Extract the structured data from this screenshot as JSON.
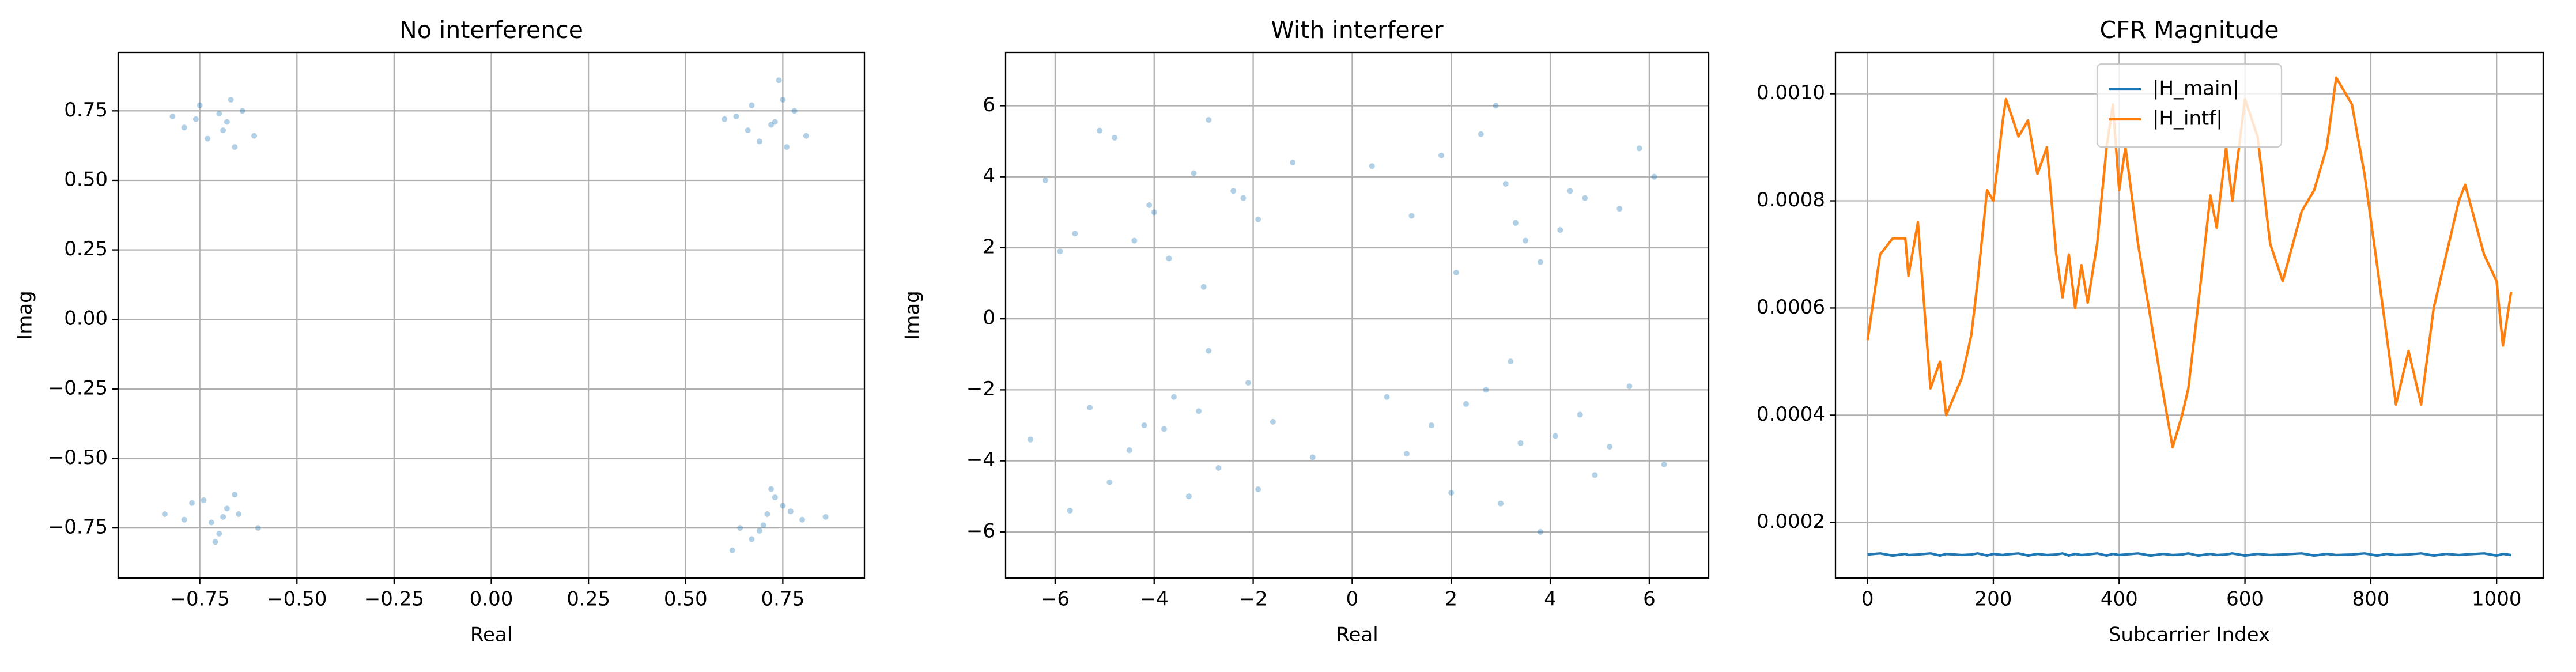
{
  "chart_data": [
    {
      "type": "scatter",
      "title": "No interference",
      "xlabel": "Real",
      "ylabel": "Imag",
      "xlim": [
        -0.96,
        0.96
      ],
      "ylim": [
        -0.93,
        0.96
      ],
      "grid": true,
      "xticks": [
        {
          "value": -0.75,
          "label": "−0.75"
        },
        {
          "value": -0.5,
          "label": "−0.50"
        },
        {
          "value": -0.25,
          "label": "−0.25"
        },
        {
          "value": 0,
          "label": "0.00"
        },
        {
          "value": 0.25,
          "label": "0.25"
        },
        {
          "value": 0.5,
          "label": "0.50"
        },
        {
          "value": 0.75,
          "label": "0.75"
        }
      ],
      "yticks": [
        {
          "value": -0.75,
          "label": "−0.75"
        },
        {
          "value": -0.5,
          "label": "−0.50"
        },
        {
          "value": -0.25,
          "label": "−0.25"
        },
        {
          "value": 0,
          "label": "0.00"
        },
        {
          "value": 0.25,
          "label": "0.25"
        },
        {
          "value": 0.5,
          "label": "0.50"
        },
        {
          "value": 0.75,
          "label": "0.75"
        }
      ],
      "series": [
        {
          "color": "#1f77b4",
          "x": [
            -0.69,
            -0.76,
            -0.64,
            -0.73,
            -0.67,
            -0.79,
            -0.7,
            -0.61,
            -0.75,
            -0.66,
            -0.82,
            -0.68,
            0.73,
            0.66,
            0.78,
            0.69,
            0.75,
            0.63,
            0.72,
            0.81,
            0.67,
            0.76,
            0.6,
            0.74,
            -0.72,
            -0.65,
            -0.77,
            -0.7,
            -0.66,
            -0.79,
            -0.68,
            -0.6,
            -0.74,
            -0.71,
            -0.84,
            -0.69,
            0.7,
            0.77,
            0.64,
            0.73,
            0.67,
            0.8,
            0.71,
            0.62,
            0.75,
            0.69,
            0.86,
            0.72
          ],
          "y": [
            0.68,
            0.72,
            0.75,
            0.65,
            0.79,
            0.69,
            0.74,
            0.66,
            0.77,
            0.62,
            0.73,
            0.71,
            0.71,
            0.68,
            0.75,
            0.64,
            0.79,
            0.73,
            0.7,
            0.66,
            0.77,
            0.62,
            0.72,
            0.86,
            -0.73,
            -0.7,
            -0.66,
            -0.77,
            -0.63,
            -0.72,
            -0.68,
            -0.75,
            -0.65,
            -0.8,
            -0.7,
            -0.71,
            -0.74,
            -0.69,
            -0.75,
            -0.64,
            -0.79,
            -0.72,
            -0.7,
            -0.83,
            -0.67,
            -0.76,
            -0.71,
            -0.61
          ]
        }
      ]
    },
    {
      "type": "scatter",
      "title": "With interferer",
      "xlabel": "Real",
      "ylabel": "Imag",
      "xlim": [
        -7.0,
        7.2
      ],
      "ylim": [
        -7.3,
        7.5
      ],
      "grid": true,
      "xticks": [
        {
          "value": -6,
          "label": "−6"
        },
        {
          "value": -4,
          "label": "−4"
        },
        {
          "value": -2,
          "label": "−2"
        },
        0,
        2,
        4,
        6
      ],
      "yticks": [
        {
          "value": -6,
          "label": "−6"
        },
        {
          "value": -4,
          "label": "−4"
        },
        {
          "value": -2,
          "label": "−2"
        },
        0,
        2,
        4,
        6
      ],
      "series": [
        {
          "color": "#1f77b4",
          "x": [
            -4.1,
            -3.2,
            -5.6,
            -2.4,
            -4.8,
            -1.9,
            -3.7,
            -6.2,
            -2.9,
            -4.4,
            -1.2,
            -5.1,
            -3.0,
            -4.0,
            -2.2,
            -5.9,
            3.1,
            4.2,
            1.8,
            5.4,
            2.6,
            3.8,
            6.1,
            1.2,
            4.7,
            2.9,
            3.5,
            5.8,
            2.1,
            4.4,
            0.4,
            3.3,
            -3.8,
            -2.7,
            -5.3,
            -4.5,
            -1.6,
            -3.3,
            -6.5,
            -2.1,
            -4.9,
            -3.6,
            -0.8,
            -5.7,
            -2.9,
            -4.2,
            -1.9,
            -3.1,
            3.4,
            2.3,
            4.9,
            1.6,
            5.6,
            3.0,
            4.1,
            2.7,
            6.3,
            1.1,
            3.8,
            4.6,
            2.0,
            5.2,
            0.7,
            3.2
          ],
          "y": [
            3.2,
            4.1,
            2.4,
            3.6,
            5.1,
            2.8,
            1.7,
            3.9,
            5.6,
            2.2,
            4.4,
            5.3,
            0.9,
            3.0,
            3.4,
            1.9,
            3.8,
            2.5,
            4.6,
            3.1,
            5.2,
            1.6,
            4.0,
            2.9,
            3.4,
            6.0,
            2.2,
            4.8,
            1.3,
            3.6,
            4.3,
            2.7,
            -3.1,
            -4.2,
            -2.5,
            -3.7,
            -2.9,
            -5.0,
            -3.4,
            -1.8,
            -4.6,
            -2.2,
            -3.9,
            -5.4,
            -0.9,
            -3.0,
            -4.8,
            -2.6,
            -3.5,
            -2.4,
            -4.4,
            -3.0,
            -1.9,
            -5.2,
            -3.3,
            -2.0,
            -4.1,
            -3.8,
            -6.0,
            -2.7,
            -4.9,
            -3.6,
            -2.2,
            -1.2
          ]
        }
      ]
    },
    {
      "type": "line",
      "title": "CFR Magnitude",
      "xlabel": "Subcarrier Index",
      "xlim": [
        -51,
        1074
      ],
      "ylim": [
        9.6e-05,
        0.001077
      ],
      "grid": true,
      "legend": "upper center",
      "xticks": [
        0,
        200,
        400,
        600,
        800,
        1000
      ],
      "yticks": [
        {
          "value": 0.0002,
          "label": "0.0002"
        },
        {
          "value": 0.0004,
          "label": "0.0004"
        },
        {
          "value": 0.0006,
          "label": "0.0006"
        },
        {
          "value": 0.0008,
          "label": "0.0008"
        },
        {
          "value": 0.001,
          "label": "0.0010"
        }
      ],
      "x": [
        0,
        20,
        40,
        60,
        65,
        80,
        100,
        115,
        125,
        150,
        165,
        175,
        190,
        200,
        215,
        220,
        240,
        255,
        270,
        285,
        300,
        310,
        320,
        330,
        340,
        350,
        365,
        380,
        390,
        400,
        410,
        430,
        450,
        470,
        485,
        500,
        510,
        525,
        545,
        555,
        570,
        580,
        600,
        620,
        640,
        660,
        690,
        710,
        730,
        745,
        770,
        790,
        810,
        825,
        840,
        860,
        880,
        900,
        920,
        940,
        950,
        980,
        1000,
        1010,
        1023
      ],
      "series": [
        {
          "name": "|H_main|",
          "color": "#1f77b4",
          "values": [
            0.00014,
            0.000142,
            0.000138,
            0.000141,
            0.000139,
            0.00014,
            0.000142,
            0.000138,
            0.000141,
            0.000139,
            0.00014,
            0.000142,
            0.000138,
            0.000141,
            0.000139,
            0.00014,
            0.000142,
            0.000138,
            0.000141,
            0.000139,
            0.00014,
            0.000142,
            0.000138,
            0.000141,
            0.000139,
            0.00014,
            0.000142,
            0.000138,
            0.000141,
            0.000139,
            0.00014,
            0.000142,
            0.000138,
            0.000141,
            0.000139,
            0.00014,
            0.000142,
            0.000138,
            0.000141,
            0.000139,
            0.00014,
            0.000142,
            0.000138,
            0.000141,
            0.000139,
            0.00014,
            0.000142,
            0.000138,
            0.000141,
            0.000139,
            0.00014,
            0.000142,
            0.000138,
            0.000141,
            0.000139,
            0.00014,
            0.000142,
            0.000138,
            0.000141,
            0.000139,
            0.00014,
            0.000142,
            0.000138,
            0.000141,
            0.000139
          ]
        },
        {
          "name": "|H_intf|",
          "color": "#ff7f0e",
          "values": [
            0.00054,
            0.0007,
            0.00073,
            0.00073,
            0.00066,
            0.00076,
            0.00045,
            0.0005,
            0.0004,
            0.00047,
            0.00055,
            0.00065,
            0.00082,
            0.0008,
            0.00095,
            0.00099,
            0.00092,
            0.00095,
            0.00085,
            0.0009,
            0.0007,
            0.00062,
            0.0007,
            0.0006,
            0.00068,
            0.00061,
            0.00072,
            0.0009,
            0.00098,
            0.00082,
            0.0009,
            0.00072,
            0.00058,
            0.00044,
            0.00034,
            0.0004,
            0.00045,
            0.0006,
            0.00081,
            0.00075,
            0.0009,
            0.0008,
            0.00099,
            0.00092,
            0.00072,
            0.00065,
            0.00078,
            0.00082,
            0.0009,
            0.00103,
            0.00098,
            0.00085,
            0.00068,
            0.00055,
            0.00042,
            0.00052,
            0.00042,
            0.0006,
            0.0007,
            0.0008,
            0.00083,
            0.0007,
            0.00065,
            0.00053,
            0.00063
          ]
        }
      ]
    }
  ]
}
